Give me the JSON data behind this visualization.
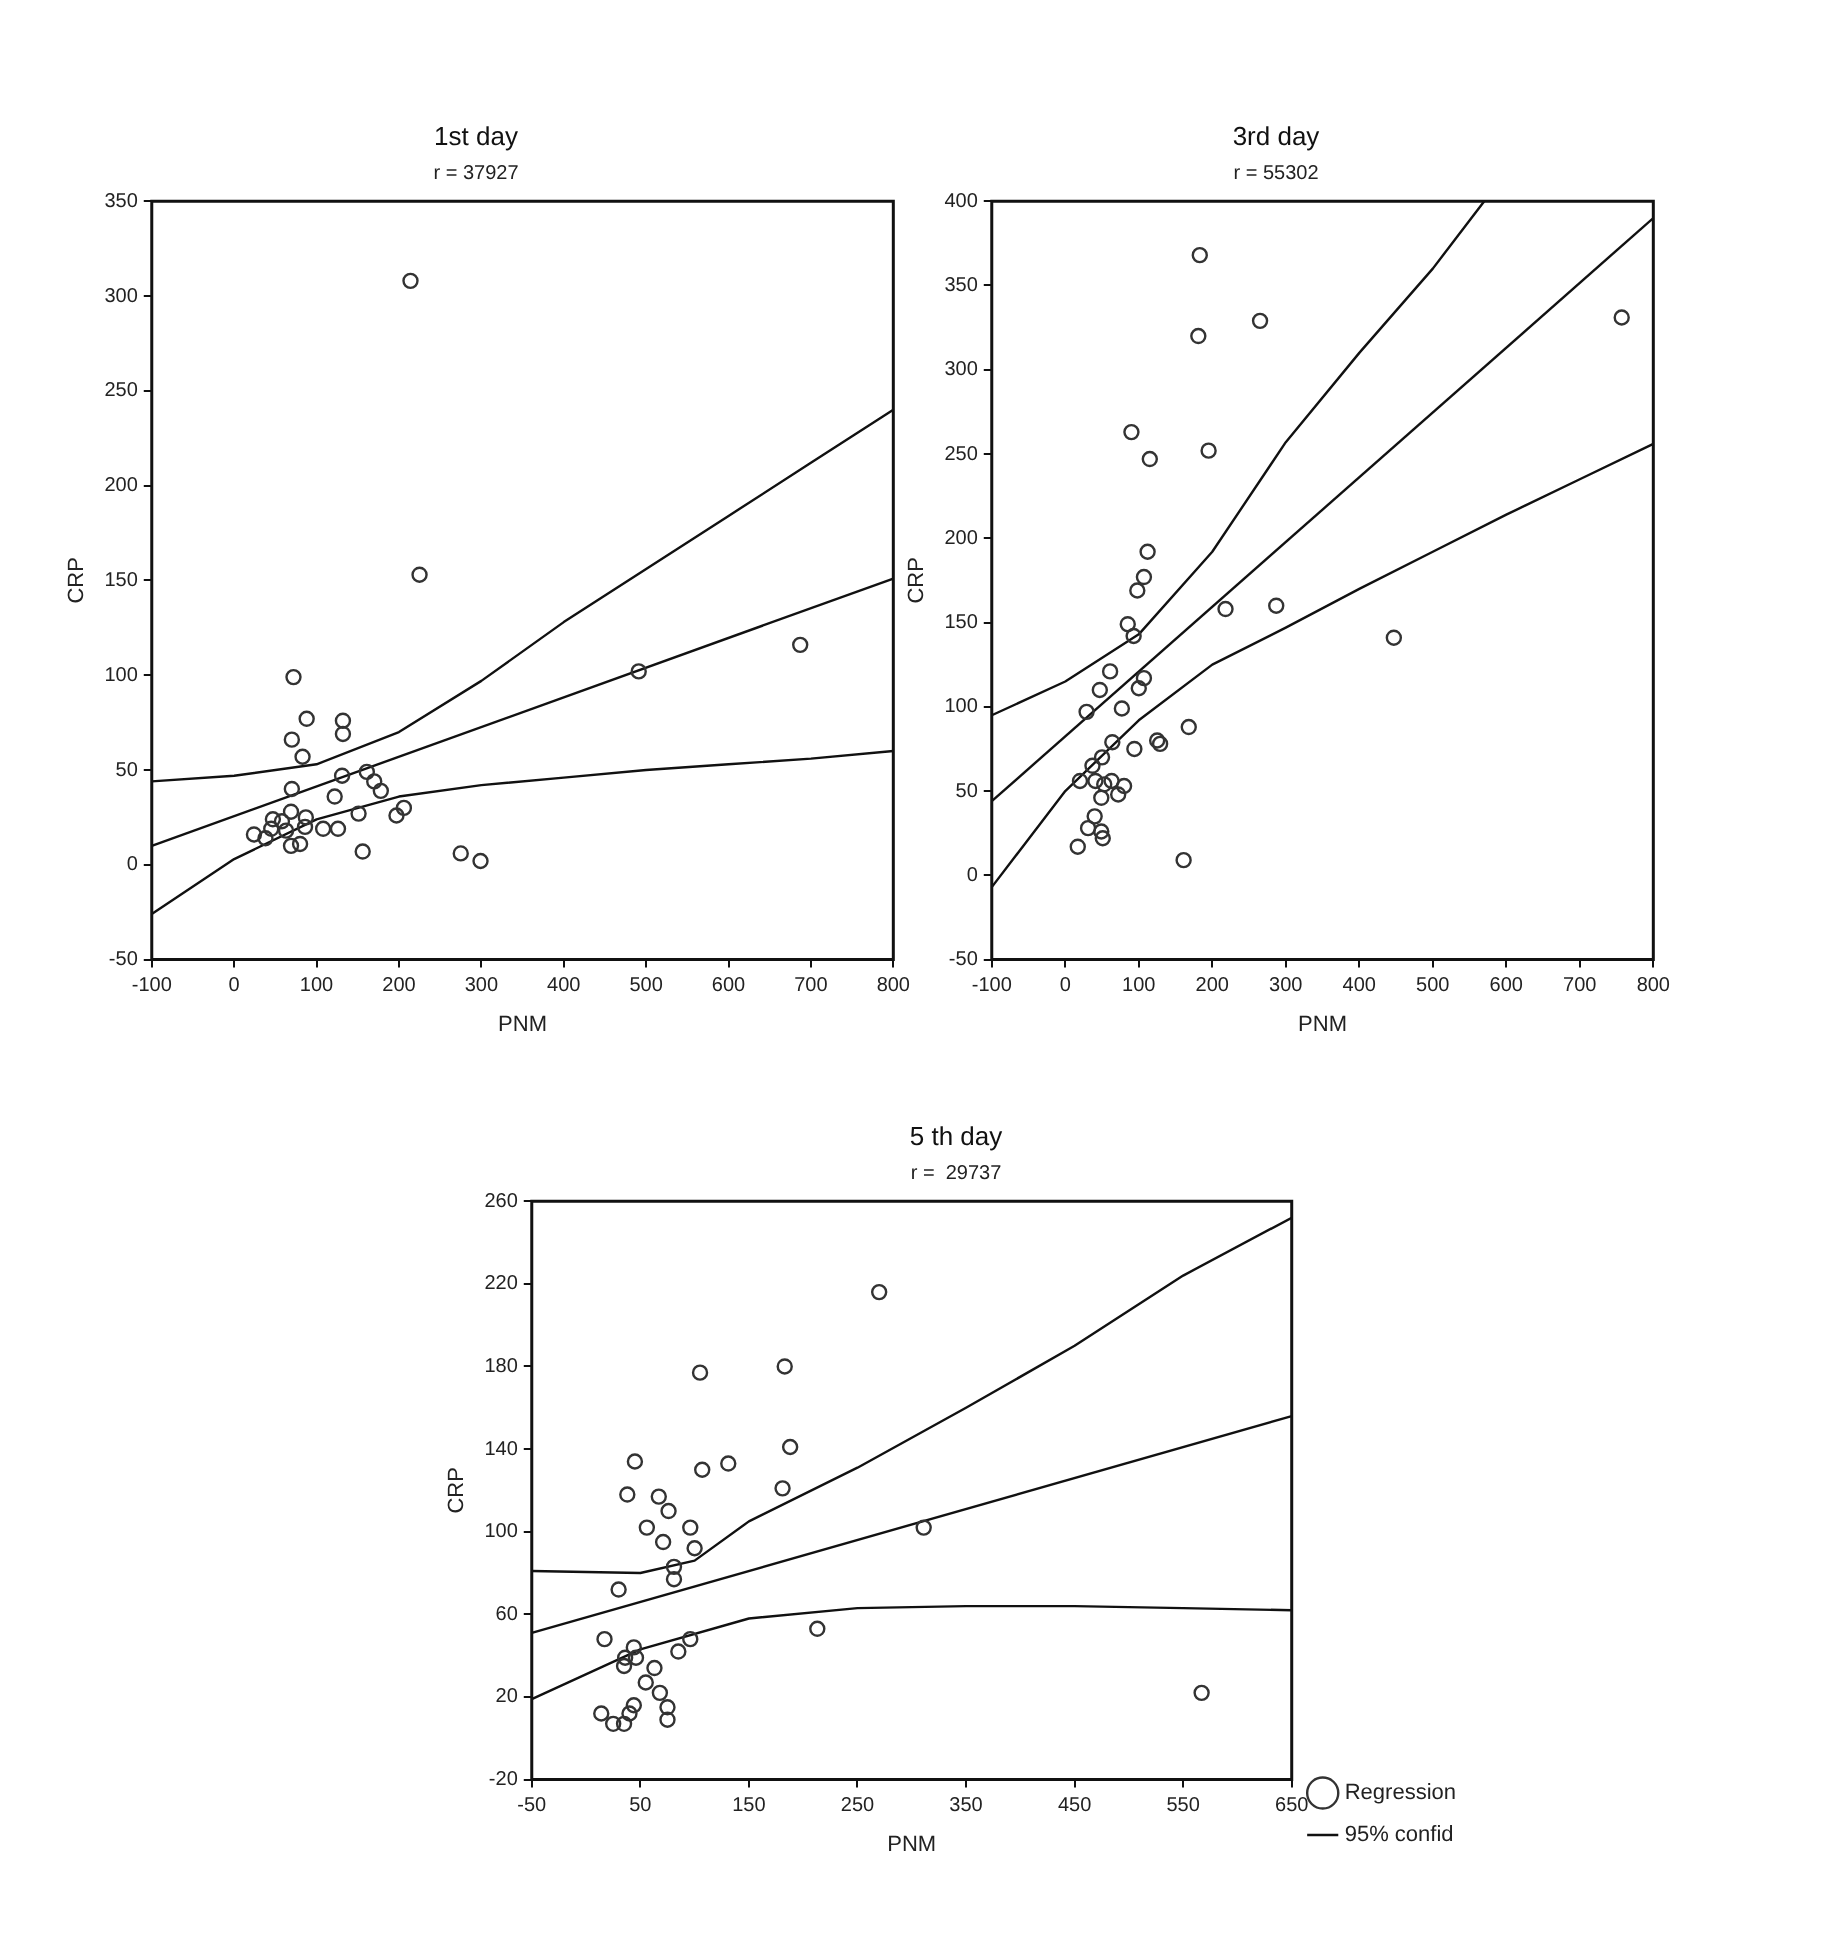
{
  "chart_data": [
    {
      "type": "scatter",
      "title": "1st day",
      "subtitle": "r = 37927",
      "xlabel": "PNM",
      "ylabel": "CRP",
      "xlim": [
        -100,
        800
      ],
      "xticks": [
        -100,
        0,
        100,
        200,
        300,
        400,
        500,
        600,
        700,
        800
      ],
      "ylim": [
        -50,
        350
      ],
      "yticks": [
        -50,
        0,
        50,
        100,
        150,
        200,
        250,
        300,
        350
      ],
      "legend": false,
      "series": [
        {
          "type": "scatter",
          "color": "#333333",
          "marker": "circle",
          "x": [
            214,
            225,
            72,
            88,
            70,
            132,
            132,
            83,
            70,
            131,
            161,
            170,
            178,
            122,
            24,
            38,
            47,
            45,
            58,
            63,
            69,
            87,
            86,
            108,
            126,
            69,
            80,
            151,
            197,
            206,
            156,
            275,
            299,
            491,
            687
          ],
          "values": [
            308,
            153,
            99,
            77,
            66,
            76,
            69,
            57,
            40,
            47,
            49,
            44,
            39,
            36,
            16,
            14,
            24,
            19,
            23,
            18,
            28,
            25,
            20,
            19,
            19,
            10,
            11,
            27,
            26,
            30,
            7,
            6,
            2,
            102,
            116
          ]
        },
        {
          "type": "line",
          "color": "#111111",
          "marker": "none",
          "x": [
            -100,
            800
          ],
          "values": [
            10,
            151
          ]
        },
        {
          "type": "line",
          "color": "#111111",
          "marker": "none",
          "x": [
            -100,
            0,
            100,
            200,
            300,
            400,
            500,
            600,
            700,
            800
          ],
          "values": [
            44,
            47,
            53,
            70,
            97,
            128,
            156,
            184,
            212,
            240
          ]
        },
        {
          "type": "line",
          "color": "#111111",
          "marker": "none",
          "x": [
            -100,
            0,
            100,
            200,
            300,
            400,
            500,
            600,
            700,
            800
          ],
          "values": [
            -26,
            3,
            24,
            36,
            42,
            46,
            50,
            53,
            56,
            60
          ]
        }
      ]
    },
    {
      "type": "scatter",
      "title": "3rd day",
      "subtitle": "r = 55302",
      "xlabel": "PNM",
      "ylabel": "CRP",
      "xlim": [
        -100,
        800
      ],
      "xticks": [
        -100,
        0,
        100,
        200,
        300,
        400,
        500,
        600,
        700,
        800
      ],
      "ylim": [
        -50,
        400
      ],
      "yticks": [
        -50,
        0,
        50,
        100,
        150,
        200,
        250,
        300,
        350,
        400
      ],
      "legend": false,
      "series": [
        {
          "type": "scatter",
          "color": "#333333",
          "marker": "circle",
          "x": [
            183,
            181,
            265,
            757,
            90,
            115,
            195,
            112,
            107,
            98,
            85,
            93,
            218,
            287,
            447,
            61,
            47,
            107,
            100,
            29,
            77,
            168,
            64,
            94,
            125,
            129,
            50,
            37,
            20,
            41,
            53,
            63,
            80,
            72,
            49,
            40,
            31,
            49,
            51,
            17,
            161
          ],
          "values": [
            368,
            320,
            329,
            331,
            263,
            247,
            252,
            192,
            177,
            169,
            149,
            142,
            158,
            160,
            141,
            121,
            110,
            117,
            111,
            97,
            99,
            88,
            79,
            75,
            80,
            78,
            70,
            65,
            56,
            56,
            54,
            56,
            53,
            48,
            46,
            35,
            28,
            26,
            22,
            17,
            9
          ]
        },
        {
          "type": "line",
          "color": "#111111",
          "marker": "none",
          "x": [
            -100,
            800
          ],
          "values": [
            44,
            390
          ]
        },
        {
          "type": "line",
          "color": "#111111",
          "marker": "none",
          "x": [
            -100,
            0,
            100,
            200,
            300,
            400,
            500,
            570
          ],
          "values": [
            95,
            115,
            143,
            192,
            257,
            310,
            360,
            400
          ]
        },
        {
          "type": "line",
          "color": "#111111",
          "marker": "none",
          "x": [
            -100,
            0,
            100,
            200,
            300,
            400,
            500,
            600,
            700,
            800
          ],
          "values": [
            -7,
            50,
            92,
            125,
            147,
            170,
            192,
            214,
            235,
            256
          ]
        }
      ]
    },
    {
      "type": "scatter",
      "title": "5 th day",
      "subtitle": "r =  29737",
      "xlabel": "PNM",
      "ylabel": "CRP",
      "xlim": [
        -50,
        650
      ],
      "xticks": [
        -50,
        50,
        150,
        250,
        350,
        450,
        550,
        650
      ],
      "ylim": [
        -20,
        260
      ],
      "yticks": [
        -20,
        20,
        60,
        100,
        140,
        180,
        220,
        260
      ],
      "legend": "bottom right",
      "series": [
        {
          "type": "scatter",
          "name": "Regression",
          "color": "#333333",
          "marker": "circle",
          "x": [
            270,
            183,
            105,
            188,
            45,
            131,
            107,
            181,
            38,
            67,
            76,
            96,
            56,
            311,
            71,
            100,
            81,
            81,
            30,
            17,
            213,
            96,
            85,
            44,
            36,
            46,
            35,
            63,
            55,
            68,
            75,
            75,
            44,
            40,
            14,
            25,
            35,
            567
          ],
          "values": [
            216,
            180,
            177,
            141,
            134,
            133,
            130,
            121,
            118,
            117,
            110,
            102,
            102,
            102,
            95,
            92,
            83,
            77,
            72,
            48,
            53,
            48,
            42,
            44,
            39,
            39,
            35,
            34,
            27,
            22,
            15,
            9,
            16,
            12,
            12,
            7,
            7,
            22
          ]
        },
        {
          "type": "line",
          "color": "#111111",
          "marker": "none",
          "x": [
            -50,
            650
          ],
          "values": [
            51,
            156
          ]
        },
        {
          "type": "line",
          "name": "95% confid",
          "color": "#111111",
          "marker": "none",
          "x": [
            -50,
            50,
            100,
            150,
            250,
            350,
            450,
            550,
            650
          ],
          "values": [
            81,
            80,
            86,
            105,
            131,
            160,
            190,
            224,
            252
          ]
        },
        {
          "type": "line",
          "color": "#111111",
          "marker": "none",
          "x": [
            -50,
            50,
            150,
            250,
            350,
            450,
            550,
            650
          ],
          "values": [
            19,
            43,
            58,
            63,
            64,
            64,
            63,
            62
          ]
        }
      ]
    }
  ]
}
